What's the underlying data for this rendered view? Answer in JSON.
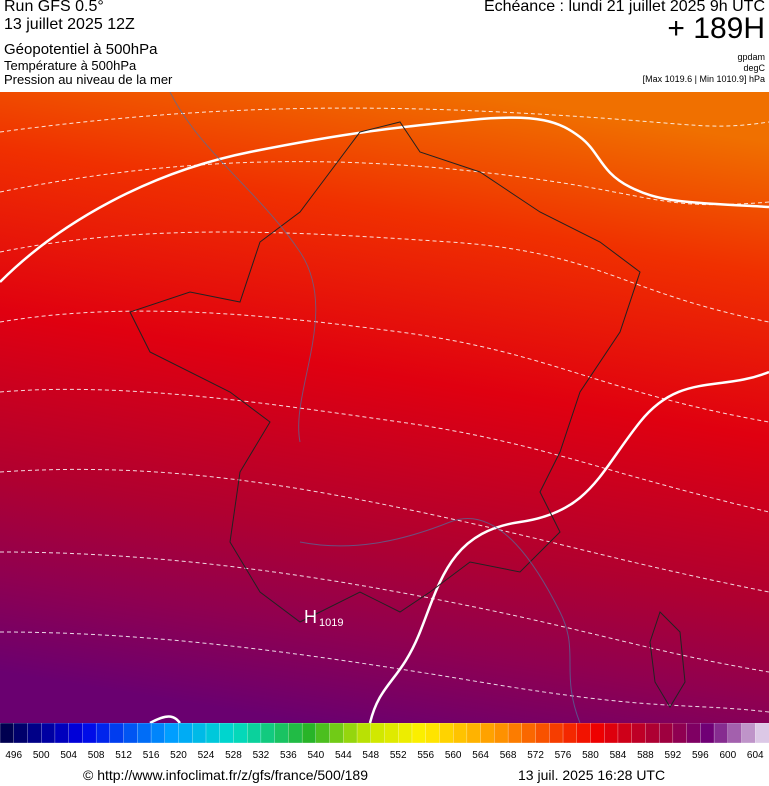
{
  "header": {
    "run": "Run GFS 0.5°",
    "run_date": "13 juillet 2025 12Z",
    "field1": "Géopotentiel à 500hPa",
    "field2": "Température à 500hPa",
    "field3": "Pression au niveau de la mer",
    "valid": "Echéance : lundi 21 juillet 2025 9h UTC",
    "lead": "+ 189H",
    "unit1": "gpdam",
    "unit2": "degC",
    "minmax": "[Max 1019.6 | Min 1010.9] hPa"
  },
  "map": {
    "high": {
      "label": "H",
      "value": "1019"
    }
  },
  "legend": {
    "ticks": [
      496,
      500,
      504,
      508,
      512,
      516,
      520,
      524,
      528,
      532,
      536,
      540,
      544,
      548,
      552,
      556,
      560,
      564,
      568,
      572,
      576,
      580,
      584,
      588,
      592,
      596,
      600,
      604
    ]
  },
  "footer": {
    "url": "© http://www.infoclimat.fr/z/gfs/france/500/189",
    "generated": "13 juil. 2025 16:28 UTC"
  }
}
